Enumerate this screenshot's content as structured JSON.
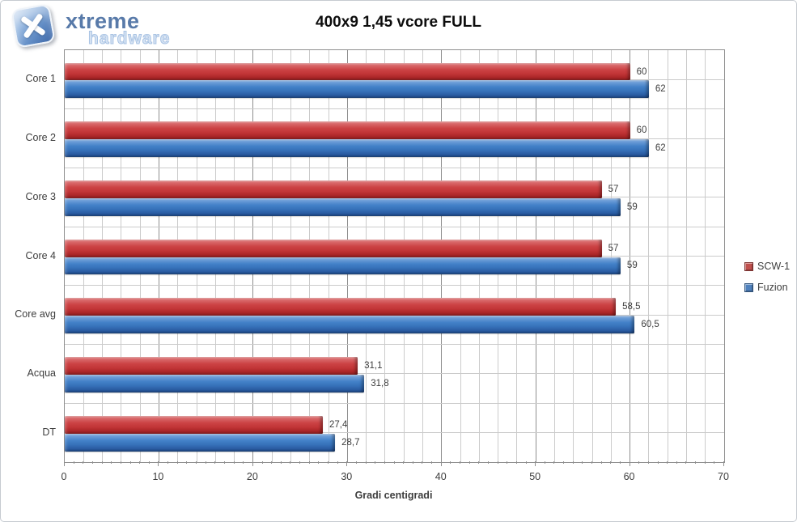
{
  "logo": {
    "brand_top": "xtreme",
    "brand_bottom": "hardware"
  },
  "title": "400x9 1,45 vcore FULL",
  "colors": {
    "series_scw1": "#C0504D",
    "series_fuzion": "#4F81BD",
    "grid_minor": "#cbcbcb",
    "grid_major": "#8f8f8f",
    "logo_blue": "#587aa9",
    "logo_light_blue": "#c9dcf2"
  },
  "chart_data": {
    "type": "bar",
    "orientation": "horizontal",
    "title": "400x9 1,45 vcore FULL",
    "xlabel": "Gradi centigradi",
    "xlim": [
      0,
      70
    ],
    "x_major_unit": 10,
    "x_minor_unit": 2,
    "grid": true,
    "legend_position": "right",
    "categories": [
      "Core 1",
      "Core 2",
      "Core 3",
      "Core 4",
      "Core avg",
      "Acqua",
      "DT"
    ],
    "tick_labels": [
      "0",
      "10",
      "20",
      "30",
      "40",
      "50",
      "60",
      "70"
    ],
    "series": [
      {
        "name": "SCW-1",
        "color": "#C0504D",
        "values": [
          60,
          60,
          57,
          57,
          58.5,
          31.1,
          27.4
        ],
        "labels": [
          "60",
          "60",
          "57",
          "57",
          "58,5",
          "31,1",
          "27,4"
        ]
      },
      {
        "name": "Fuzion",
        "color": "#4F81BD",
        "values": [
          62,
          62,
          59,
          59,
          60.5,
          31.8,
          28.7
        ],
        "labels": [
          "62",
          "62",
          "59",
          "59",
          "60,5",
          "31,8",
          "28,7"
        ]
      }
    ]
  }
}
